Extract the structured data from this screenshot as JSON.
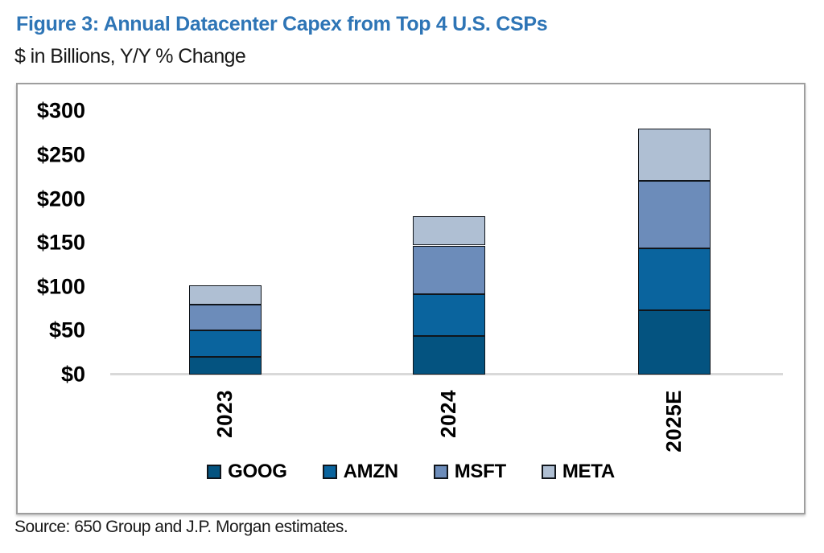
{
  "figure": {
    "title": "Figure 3: Annual Datacenter Capex from Top 4 U.S. CSPs",
    "subtitle": "$ in Billions, Y/Y % Change",
    "source": "Source: 650 Group and J.P. Morgan estimates."
  },
  "chart_data": {
    "type": "bar",
    "stacked": true,
    "title": "Figure 3: Annual Datacenter Capex from Top 4 U.S. CSPs",
    "subtitle": "$ in Billions, Y/Y % Change",
    "unit": "$ in Billions",
    "categories": [
      "2023",
      "2024",
      "2025E"
    ],
    "series": [
      {
        "name": "GOOG",
        "color": "#045380",
        "values": [
          20,
          44,
          73
        ]
      },
      {
        "name": "AMZN",
        "color": "#0A649E",
        "values": [
          30,
          48,
          71
        ]
      },
      {
        "name": "MSFT",
        "color": "#6C8CBA",
        "values": [
          30,
          55,
          77
        ]
      },
      {
        "name": "META",
        "color": "#AFBFD3",
        "values": [
          22,
          33,
          59
        ]
      }
    ],
    "stack_totals": [
      102,
      180,
      280
    ],
    "ylim": [
      0,
      300
    ],
    "yticks": [
      {
        "value": 0,
        "label": "$0"
      },
      {
        "value": 50,
        "label": "$50"
      },
      {
        "value": 100,
        "label": "$100"
      },
      {
        "value": 150,
        "label": "$150"
      },
      {
        "value": 200,
        "label": "$200"
      },
      {
        "value": 250,
        "label": "$250"
      },
      {
        "value": 300,
        "label": "$300"
      }
    ],
    "grid": false,
    "legend_position": "bottom",
    "bar_border_color": "#10151B",
    "axis_line_color": "#D9D9D9",
    "title_color": "#2E75B6"
  }
}
